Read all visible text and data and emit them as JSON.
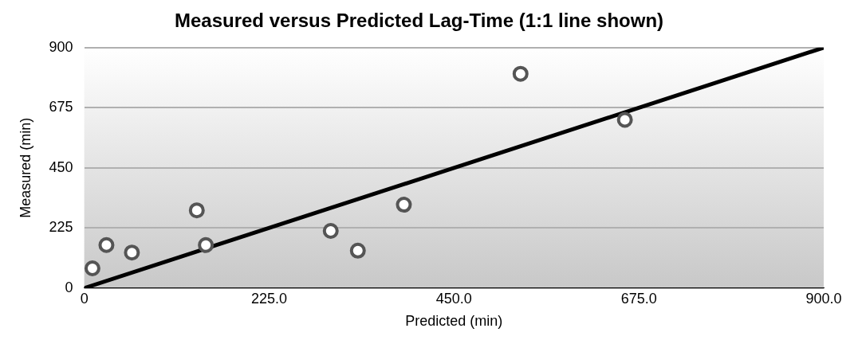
{
  "chart_data": {
    "type": "scatter",
    "title": "Measured versus Predicted Lag-Time (1:1 line shown)",
    "xlabel": "Predicted (min)",
    "ylabel": "Measured (min)",
    "series": [
      {
        "type": "scatter",
        "color": "#555555",
        "x": [
          10,
          27,
          58,
          137,
          148,
          300,
          333,
          389,
          531,
          658
        ],
        "values": [
          74,
          161,
          133,
          291,
          161,
          214,
          140,
          312,
          802,
          630
        ],
        "marker": "circle"
      },
      {
        "type": "line",
        "color": "#000000",
        "x": [
          0,
          900
        ],
        "values": [
          0,
          900
        ],
        "marker": "none"
      }
    ],
    "xlim": [
      0,
      900
    ],
    "xticks": [
      0,
      {
        "value": 225,
        "label": "225.0"
      },
      {
        "value": 450,
        "label": "450.0"
      },
      {
        "value": 675,
        "label": "675.0"
      },
      {
        "value": 900,
        "label": "900.0"
      }
    ],
    "ylim": [
      0,
      900
    ],
    "yticks": [
      0,
      225,
      450,
      675,
      900
    ],
    "grid": "y",
    "legend": false
  }
}
